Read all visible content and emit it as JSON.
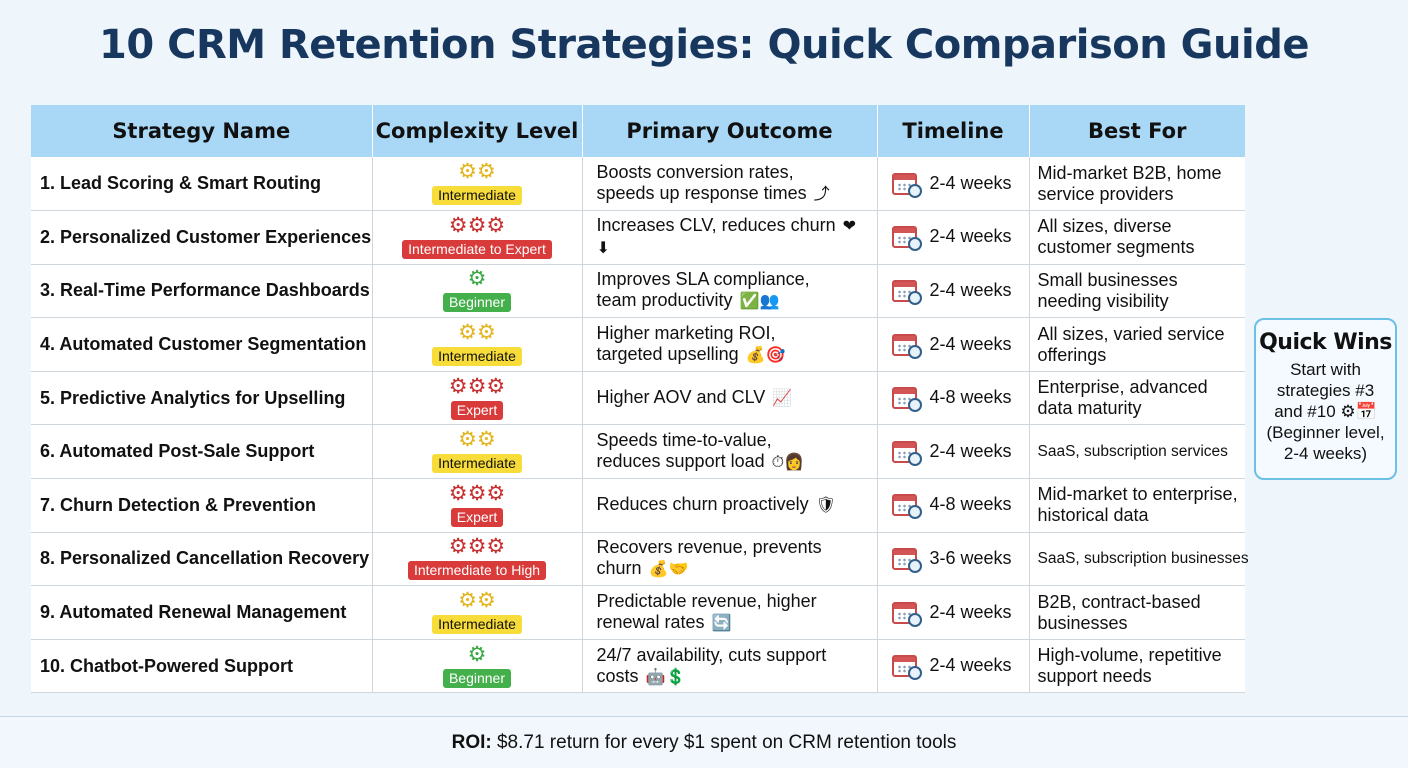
{
  "title": "10 CRM Retention Strategies: Quick Comparison Guide",
  "columns": [
    "Strategy Name",
    "Complexity Level",
    "Primary Outcome",
    "Timeline",
    "Best For"
  ],
  "colors": {
    "title": "#17375e",
    "header_bg": "#a9d8f7",
    "badge_intermediate": "#f7dc3a",
    "badge_expert": "#d93a3a",
    "badge_beginner": "#44b04c",
    "quick_wins_border": "#6cc0e6"
  },
  "rows": [
    {
      "name": "1. Lead Scoring & Smart Routing",
      "gears": "⚙⚙",
      "gear_color": "y",
      "level": "Intermediate",
      "outcome_1": "Boosts conversion rates,",
      "outcome_2": "speeds up response times",
      "emoji": "⤴",
      "timeline": "2-4 weeks",
      "best_1": "Mid-market B2B, home",
      "best_2": "service providers"
    },
    {
      "name": "2. Personalized Customer Experiences",
      "gears": "⚙⚙⚙",
      "gear_color": "r",
      "level": "Intermediate to Expert",
      "outcome_1": "Increases CLV, reduces churn",
      "outcome_2": "",
      "emoji": "❤⬇",
      "timeline": "2-4 weeks",
      "best_1": "All sizes, diverse",
      "best_2": "customer segments"
    },
    {
      "name": "3. Real-Time Performance Dashboards",
      "gears": "⚙",
      "gear_color": "g",
      "level": "Beginner",
      "outcome_1": "Improves SLA compliance,",
      "outcome_2": "team productivity",
      "emoji": "✅👥",
      "timeline": "2-4 weeks",
      "best_1": "Small businesses",
      "best_2": "needing visibility"
    },
    {
      "name": "4. Automated Customer Segmentation",
      "gears": "⚙⚙",
      "gear_color": "y",
      "level": "Intermediate",
      "outcome_1": "Higher marketing ROI,",
      "outcome_2": "targeted upselling",
      "emoji": "💰🎯",
      "timeline": "2-4 weeks",
      "best_1": "All sizes, varied service",
      "best_2": "offerings"
    },
    {
      "name": "5. Predictive Analytics for Upselling",
      "gears": "⚙⚙⚙",
      "gear_color": "r",
      "level": "Expert",
      "outcome_1": "Higher AOV and CLV",
      "outcome_2": "",
      "emoji": "📈",
      "timeline": "4-8 weeks",
      "best_1": "Enterprise, advanced",
      "best_2": "data maturity"
    },
    {
      "name": "6. Automated Post-Sale Support",
      "gears": "⚙⚙",
      "gear_color": "y",
      "level": "Intermediate",
      "outcome_1": "Speeds time-to-value,",
      "outcome_2": "reduces support load",
      "emoji": "⏱👩",
      "timeline": "2-4 weeks",
      "best_1": "SaaS, subscription services",
      "best_2": ""
    },
    {
      "name": "7. Churn Detection & Prevention",
      "gears": "⚙⚙⚙",
      "gear_color": "r",
      "level": "Expert",
      "outcome_1": "Reduces churn proactively",
      "outcome_2": "",
      "emoji": "🛡",
      "timeline": "4-8 weeks",
      "best_1": "Mid-market to enterprise,",
      "best_2": "historical data"
    },
    {
      "name": "8. Personalized Cancellation Recovery",
      "gears": "⚙⚙⚙",
      "gear_color": "r",
      "level": "Intermediate to High",
      "outcome_1": "Recovers revenue, prevents",
      "outcome_2": "churn",
      "emoji": "💰🤝",
      "timeline": "3-6 weeks",
      "best_1": "SaaS, subscription businesses",
      "best_2": ""
    },
    {
      "name": "9. Automated Renewal Management",
      "gears": "⚙⚙",
      "gear_color": "y",
      "level": "Intermediate",
      "outcome_1": "Predictable revenue, higher",
      "outcome_2": "renewal rates",
      "emoji": "🔄",
      "timeline": "2-4 weeks",
      "best_1": "B2B, contract-based",
      "best_2": "businesses"
    },
    {
      "name": "10. Chatbot-Powered Support",
      "gears": "⚙",
      "gear_color": "g",
      "level": "Beginner",
      "outcome_1": "24/7 availability, cuts support",
      "outcome_2": "costs",
      "emoji": "🤖💲",
      "timeline": "2-4 weeks",
      "best_1": "High-volume, repetitive",
      "best_2": "support needs"
    }
  ],
  "quick_wins": {
    "heading": "Quick Wins",
    "body": "Start with strategies #3 and #10 ⚙📅 (Beginner level, 2-4 weeks)"
  },
  "footer": {
    "label": "ROI:",
    "text": "$8.71 return for every $1 spent on CRM retention tools"
  }
}
